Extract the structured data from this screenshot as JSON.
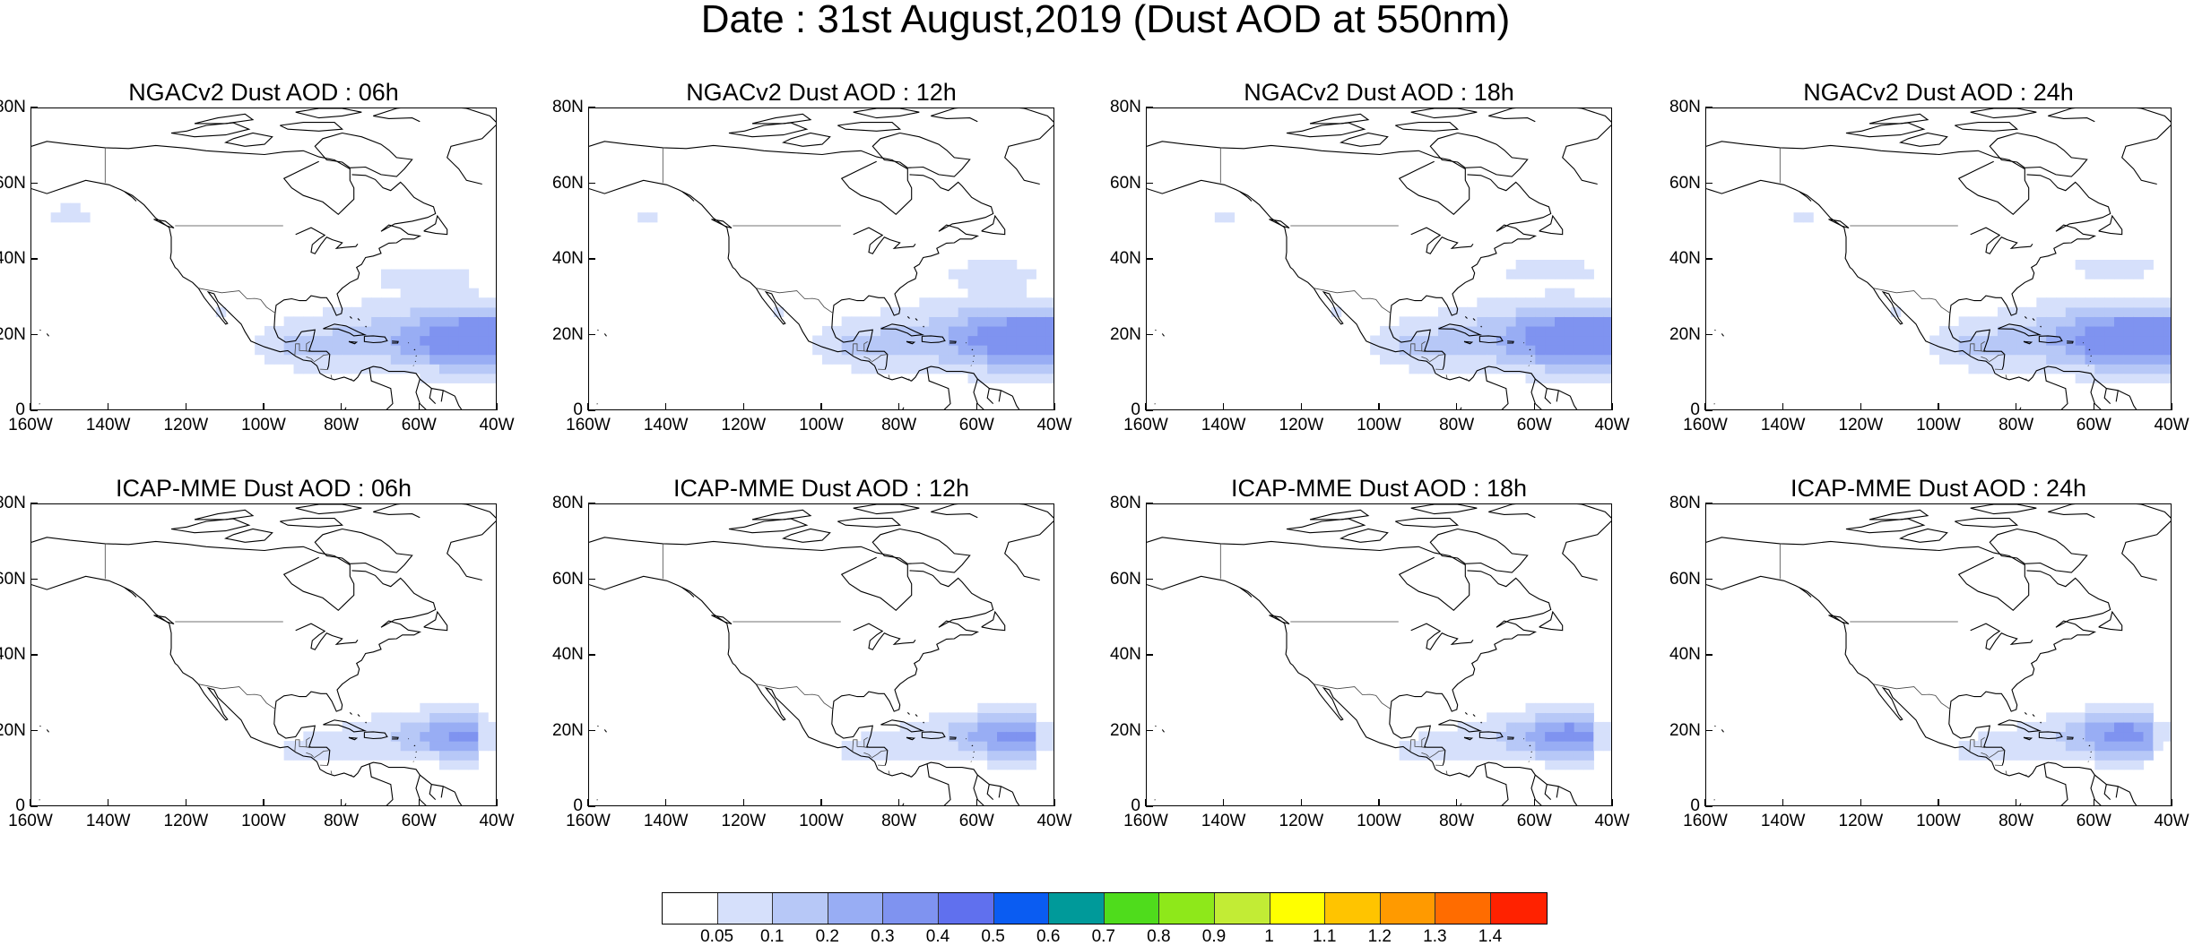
{
  "title": "Date : 31st August,2019 (Dust AOD at 550nm)",
  "panels": [
    {
      "title": "NGACv2 Dust AOD : 06h",
      "model": "ngac",
      "shift": 0
    },
    {
      "title": "NGACv2 Dust AOD : 12h",
      "model": "ngac",
      "shift": 1
    },
    {
      "title": "NGACv2 Dust AOD : 18h",
      "model": "ngac",
      "shift": 2
    },
    {
      "title": "NGACv2 Dust AOD : 24h",
      "model": "ngac",
      "shift": 3
    },
    {
      "title": "ICAP-MME Dust AOD : 06h",
      "model": "icap",
      "shift": 0
    },
    {
      "title": "ICAP-MME Dust AOD : 12h",
      "model": "icap",
      "shift": 1
    },
    {
      "title": "ICAP-MME Dust AOD : 18h",
      "model": "icap",
      "shift": 2
    },
    {
      "title": "ICAP-MME Dust AOD : 24h",
      "model": "icap",
      "shift": 3
    }
  ],
  "axes": {
    "lat_labels": [
      "80N",
      "60N",
      "40N",
      "20N",
      "0"
    ],
    "lat_values": [
      80,
      60,
      40,
      20,
      0
    ],
    "lon_labels": [
      "160W",
      "140W",
      "120W",
      "100W",
      "80W",
      "60W",
      "40W"
    ],
    "lon_values": [
      -160,
      -140,
      -120,
      -100,
      -80,
      -60,
      -40
    ],
    "lon_range": [
      -160,
      -40
    ],
    "lat_range": [
      0,
      80
    ]
  },
  "colorbar": {
    "labels": [
      "0.05",
      "0.1",
      "0.2",
      "0.3",
      "0.4",
      "0.5",
      "0.6",
      "0.7",
      "0.8",
      "0.9",
      "1",
      "1.1",
      "1.2",
      "1.3",
      "1.4"
    ],
    "colors": [
      "#ffffff",
      "#d6e0fb",
      "#b7c8f7",
      "#98adf4",
      "#7f93f0",
      "#6070ee",
      "#0a5cf2",
      "#009a9a",
      "#4fdc1c",
      "#8ee81a",
      "#c2ec35",
      "#ffff00",
      "#ffc400",
      "#ff9a00",
      "#ff6c00",
      "#ff2200"
    ]
  },
  "colors": {
    "land_outline": "#000000",
    "aod_low": "#d6e0fb",
    "aod_mid": "#b7c8f7",
    "aod_high": "#98adf4",
    "aod_max": "#7f93f0"
  }
}
